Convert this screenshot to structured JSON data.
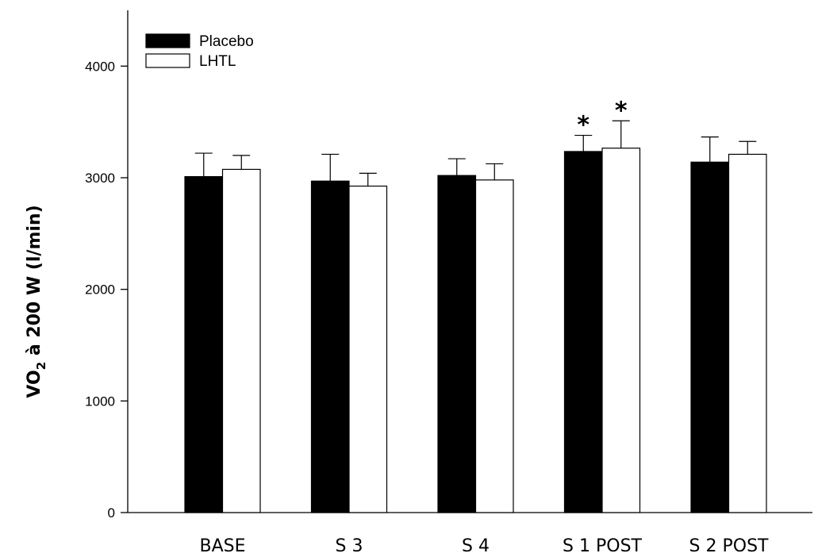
{
  "chart_data": {
    "type": "bar",
    "categories": [
      "BASE",
      "S 3",
      "S 4",
      "S 1 POST",
      "S 2 POST"
    ],
    "series": [
      {
        "name": "Placebo",
        "color": "#000000",
        "values": [
          3010,
          2970,
          3020,
          3235,
          3140
        ],
        "errors": [
          210,
          240,
          150,
          145,
          225
        ],
        "annotations": [
          "",
          "",
          "",
          "*",
          ""
        ]
      },
      {
        "name": "LHTL",
        "color": "#ffffff",
        "values": [
          3075,
          2925,
          2980,
          3265,
          3210
        ],
        "errors": [
          125,
          115,
          145,
          245,
          115
        ],
        "annotations": [
          "",
          "",
          "",
          "*",
          ""
        ]
      }
    ],
    "ylabel_main": "VO",
    "ylabel_sub": "2",
    "ylabel_rest": " à 200 W (l/min)",
    "ylim": [
      0,
      4500
    ],
    "yticks": [
      0,
      1000,
      2000,
      3000,
      4000
    ],
    "grid": false,
    "legend_position": "top-left"
  }
}
